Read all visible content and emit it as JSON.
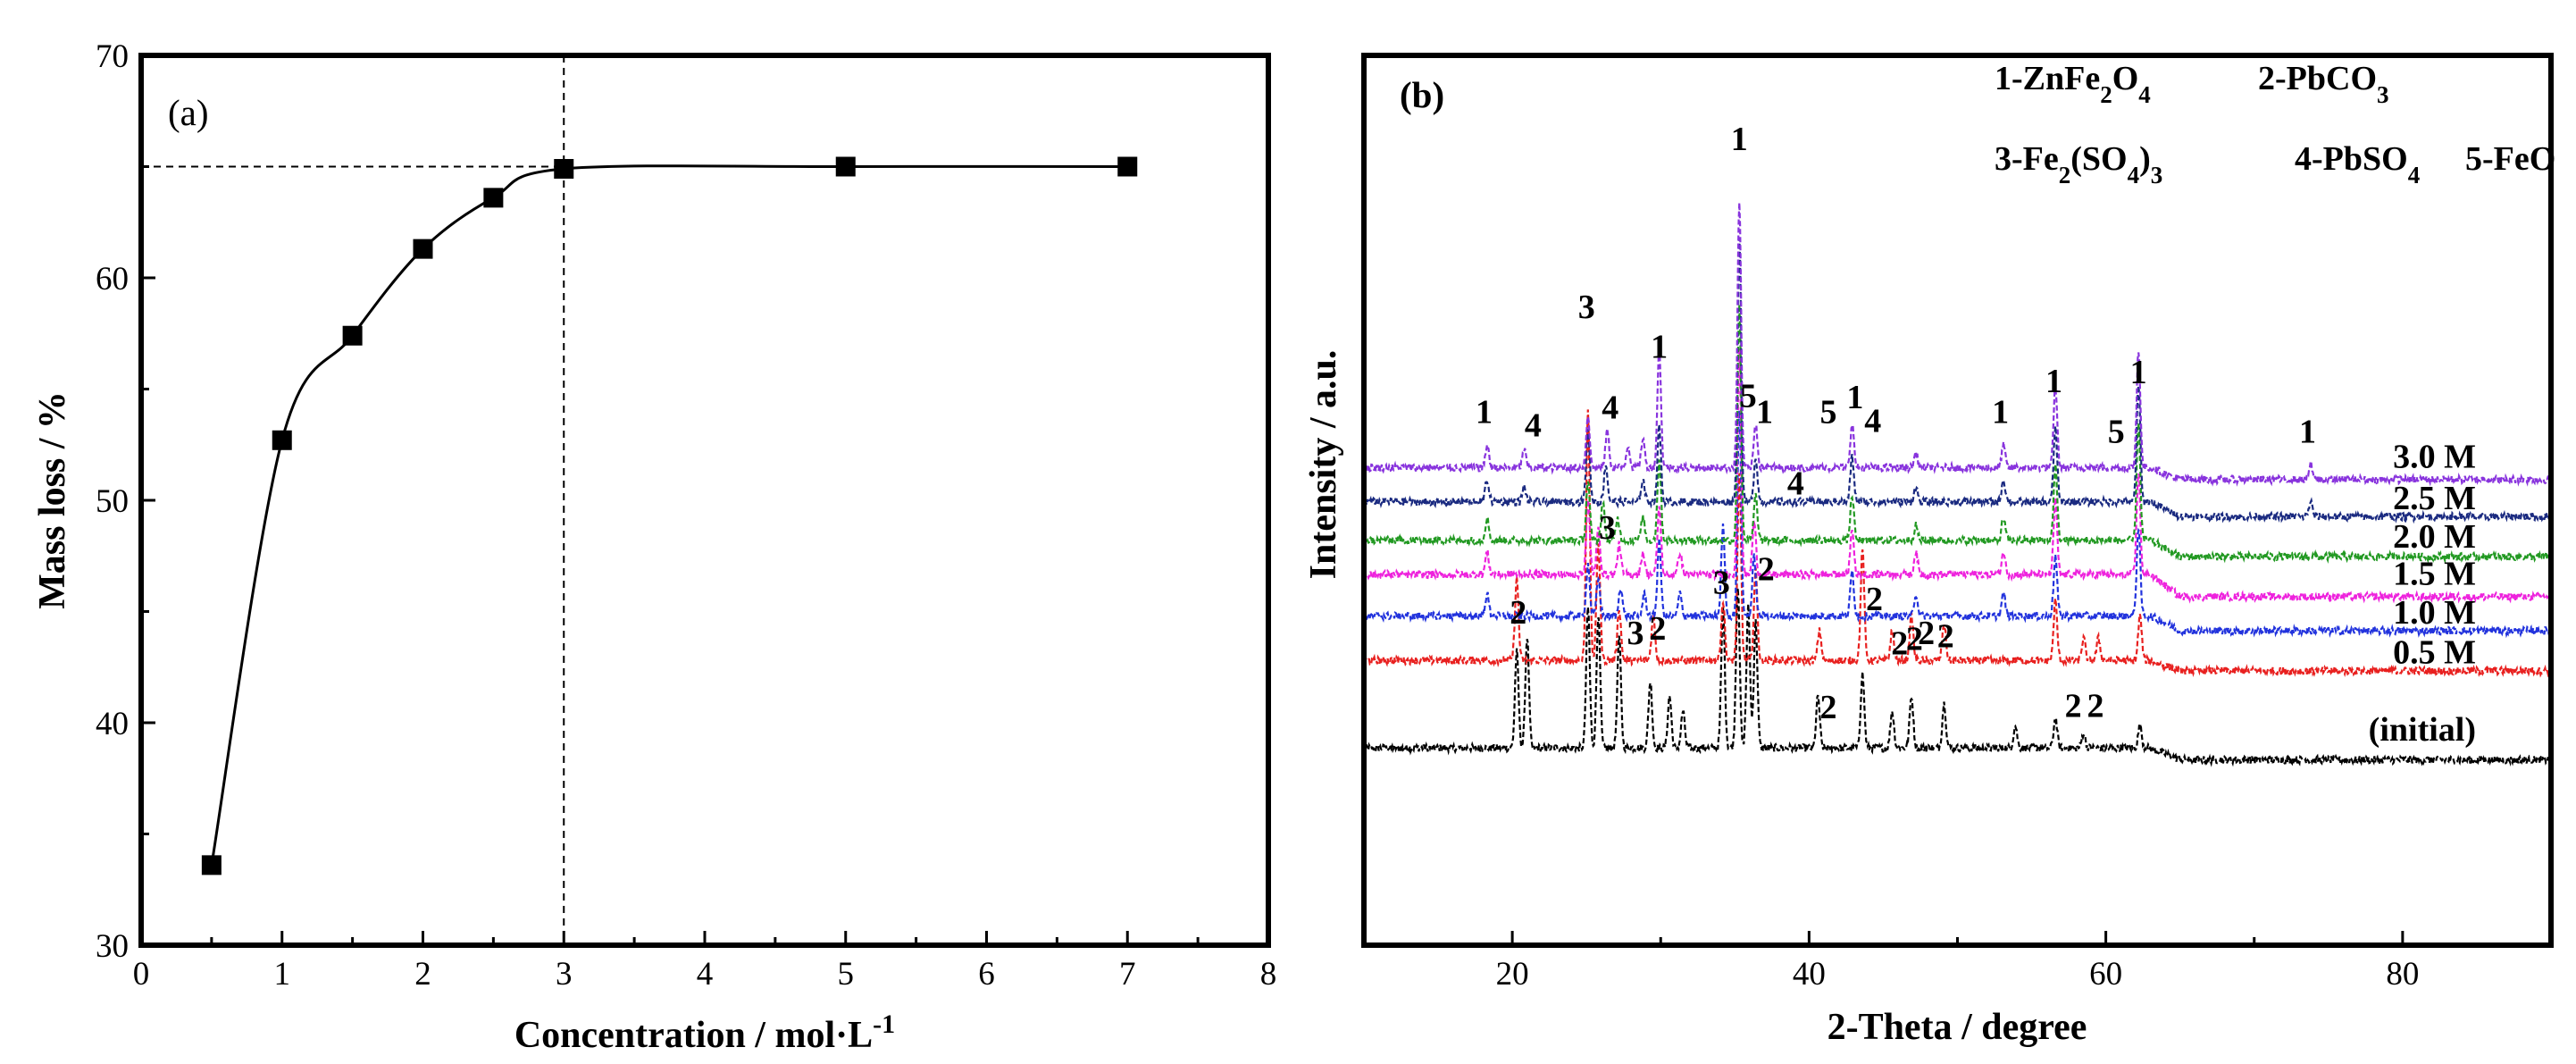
{
  "chart_data": [
    {
      "panel": "(a)",
      "type": "scatter",
      "xlabel": "Concentration / mol·L",
      "xlabel_sup": "-1",
      "ylabel": "Mass loss / %",
      "xlim": [
        0,
        8
      ],
      "ylim": [
        30,
        70
      ],
      "xticks": [
        "0",
        "1",
        "2",
        "3",
        "4",
        "5",
        "6",
        "7",
        "8"
      ],
      "yticks": [
        "30",
        "40",
        "50",
        "60",
        "70"
      ],
      "points": [
        {
          "x": 0.5,
          "y": 33.6
        },
        {
          "x": 1.0,
          "y": 52.7
        },
        {
          "x": 1.5,
          "y": 57.4
        },
        {
          "x": 2.0,
          "y": 61.3
        },
        {
          "x": 2.5,
          "y": 63.6
        },
        {
          "x": 3.0,
          "y": 64.9
        },
        {
          "x": 5.0,
          "y": 65.0
        },
        {
          "x": 7.0,
          "y": 65.0
        }
      ],
      "fit_curve": "smooth fit through points",
      "reference_lines": {
        "vertical_x": 3.0,
        "horizontal_y": 65.0,
        "style": "dashed"
      }
    },
    {
      "panel": "(b)",
      "type": "line",
      "xlabel": "2-Theta / degree",
      "ylabel": "Intensity / a.u.",
      "xlim": [
        10,
        90
      ],
      "xticks": [
        "20",
        "40",
        "60",
        "80"
      ],
      "legend": [
        {
          "no": "1",
          "formula": [
            [
              "ZnFe",
              ""
            ],
            [
              "2",
              "sub"
            ],
            [
              "O",
              ""
            ],
            [
              "4",
              "sub"
            ]
          ]
        },
        {
          "no": "2",
          "formula": [
            [
              "PbCO",
              ""
            ],
            [
              "3",
              "sub"
            ]
          ]
        },
        {
          "no": "3",
          "formula": [
            [
              "Fe",
              ""
            ],
            [
              "2",
              "sub"
            ],
            [
              "(SO",
              ""
            ],
            [
              "4",
              "sub"
            ],
            [
              ")",
              ""
            ],
            [
              "3",
              "sub"
            ]
          ]
        },
        {
          "no": "4",
          "formula": [
            [
              "PbSO",
              ""
            ],
            [
              "4",
              "sub"
            ]
          ]
        },
        {
          "no": "5",
          "formula": [
            [
              "FeO",
              ""
            ]
          ]
        }
      ],
      "series": [
        {
          "name": "(initial)",
          "color": "#000000",
          "baseline": 35.3,
          "endline": 34.5,
          "peaks": [
            [
              20.3,
              6.5
            ],
            [
              21.0,
              7.5
            ],
            [
              25.1,
              9.5
            ],
            [
              25.8,
              9.0
            ],
            [
              27.2,
              7.5
            ],
            [
              29.3,
              4.5
            ],
            [
              30.6,
              3.5
            ],
            [
              31.5,
              2.5
            ],
            [
              34.2,
              9.5
            ],
            [
              35.2,
              11.0
            ],
            [
              35.9,
              9.5
            ],
            [
              36.4,
              8.5
            ],
            [
              40.6,
              3.5
            ],
            [
              43.6,
              5.0
            ],
            [
              45.6,
              2.5
            ],
            [
              46.9,
              3.5
            ],
            [
              49.1,
              3.0
            ],
            [
              53.9,
              1.5
            ],
            [
              56.6,
              2.0
            ],
            [
              58.5,
              1.0
            ],
            [
              62.3,
              1.5
            ]
          ]
        },
        {
          "name": "0.5 M",
          "color": "#e8201f",
          "baseline": 41.2,
          "endline": 40.5,
          "peaks": [
            [
              20.3,
              5.5
            ],
            [
              25.1,
              17.0
            ],
            [
              25.8,
              8.0
            ],
            [
              27.2,
              3.5
            ],
            [
              29.5,
              3.0
            ],
            [
              34.2,
              4.0
            ],
            [
              35.3,
              12.5
            ],
            [
              36.4,
              6.0
            ],
            [
              40.7,
              2.0
            ],
            [
              43.6,
              7.5
            ],
            [
              45.6,
              2.0
            ],
            [
              46.9,
              3.0
            ],
            [
              49.1,
              2.5
            ],
            [
              56.6,
              4.0
            ],
            [
              58.5,
              1.5
            ],
            [
              59.5,
              1.5
            ],
            [
              62.3,
              3.0
            ]
          ]
        },
        {
          "name": "1.0 M",
          "color": "#2233dd",
          "baseline": 44.2,
          "endline": 43.2,
          "peaks": [
            [
              18.3,
              1.5
            ],
            [
              25.1,
              3.5
            ],
            [
              25.8,
              2.5
            ],
            [
              27.3,
              2.0
            ],
            [
              28.9,
              1.5
            ],
            [
              29.9,
              5.0
            ],
            [
              31.3,
              1.5
            ],
            [
              34.2,
              6.0
            ],
            [
              35.3,
              14.0
            ],
            [
              36.3,
              4.0
            ],
            [
              42.9,
              3.0
            ],
            [
              47.2,
              1.5
            ],
            [
              53.1,
              1.5
            ],
            [
              56.6,
              4.0
            ],
            [
              62.2,
              6.0
            ]
          ]
        },
        {
          "name": "1.5 M",
          "color": "#ee22dd",
          "baseline": 47.0,
          "endline": 45.5,
          "peaks": [
            [
              18.3,
              1.5
            ],
            [
              25.1,
              5.0
            ],
            [
              25.8,
              3.0
            ],
            [
              27.2,
              2.0
            ],
            [
              28.8,
              1.5
            ],
            [
              29.9,
              4.5
            ],
            [
              31.3,
              1.5
            ],
            [
              35.3,
              15.0
            ],
            [
              36.3,
              3.5
            ],
            [
              42.9,
              3.0
            ],
            [
              47.2,
              1.5
            ],
            [
              53.1,
              1.5
            ],
            [
              56.6,
              5.0
            ],
            [
              62.2,
              7.0
            ]
          ]
        },
        {
          "name": "2.0 M",
          "color": "#229922",
          "baseline": 49.3,
          "endline": 48.2,
          "peaks": [
            [
              18.3,
              1.5
            ],
            [
              25.1,
              4.0
            ],
            [
              26.1,
              2.5
            ],
            [
              27.1,
              1.5
            ],
            [
              28.8,
              1.5
            ],
            [
              29.9,
              5.5
            ],
            [
              35.3,
              16.0
            ],
            [
              36.4,
              3.0
            ],
            [
              42.9,
              3.0
            ],
            [
              47.2,
              1.0
            ],
            [
              53.1,
              1.5
            ],
            [
              56.6,
              5.0
            ],
            [
              62.2,
              8.0
            ]
          ]
        },
        {
          "name": "2.5 M",
          "color": "#1a2a80",
          "baseline": 51.9,
          "endline": 50.9,
          "peaks": [
            [
              18.3,
              1.5
            ],
            [
              20.8,
              1.0
            ],
            [
              25.1,
              5.0
            ],
            [
              26.3,
              2.5
            ],
            [
              28.8,
              1.5
            ],
            [
              29.9,
              5.0
            ],
            [
              35.3,
              18.0
            ],
            [
              36.4,
              3.0
            ],
            [
              42.9,
              3.0
            ],
            [
              47.2,
              1.0
            ],
            [
              53.1,
              1.5
            ],
            [
              56.6,
              5.0
            ],
            [
              62.2,
              8.0
            ],
            [
              73.8,
              1.0
            ]
          ]
        },
        {
          "name": "3.0 M",
          "color": "#8833dd",
          "baseline": 54.2,
          "endline": 53.4,
          "peaks": [
            [
              18.3,
              1.5
            ],
            [
              20.8,
              1.2
            ],
            [
              25.1,
              3.5
            ],
            [
              26.4,
              2.5
            ],
            [
              27.8,
              1.5
            ],
            [
              28.8,
              2.0
            ],
            [
              29.9,
              8.0
            ],
            [
              35.3,
              18.0
            ],
            [
              36.4,
              3.0
            ],
            [
              42.9,
              3.0
            ],
            [
              47.2,
              1.0
            ],
            [
              53.1,
              1.5
            ],
            [
              56.6,
              5.5
            ],
            [
              62.2,
              8.0
            ],
            [
              73.8,
              1.0
            ]
          ]
        }
      ],
      "series_labels": [
        {
          "text": "3.0 M",
          "y": 54.2
        },
        {
          "text": "2.5 M",
          "y": 51.4
        },
        {
          "text": "2.0 M",
          "y": 48.8
        },
        {
          "text": "1.5 M",
          "y": 46.3
        },
        {
          "text": "1.0 M",
          "y": 43.7
        },
        {
          "text": "0.5 M",
          "y": 41.0
        },
        {
          "text": "(initial)",
          "y": 35.8
        }
      ],
      "peak_labels": [
        {
          "text": "1",
          "x": 35.3,
          "y": 75.6
        },
        {
          "text": "3",
          "x": 25.0,
          "y": 64.3
        },
        {
          "text": "1",
          "x": 29.9,
          "y": 61.6
        },
        {
          "text": "1",
          "x": 62.2,
          "y": 59.9
        },
        {
          "text": "1",
          "x": 56.5,
          "y": 59.3
        },
        {
          "text": "5",
          "x": 35.9,
          "y": 58.3
        },
        {
          "text": "1",
          "x": 37.0,
          "y": 57.2
        },
        {
          "text": "1",
          "x": 43.1,
          "y": 58.2
        },
        {
          "text": "5",
          "x": 41.3,
          "y": 57.2
        },
        {
          "text": "4",
          "x": 26.6,
          "y": 57.5
        },
        {
          "text": "1",
          "x": 18.1,
          "y": 57.2
        },
        {
          "text": "4",
          "x": 21.4,
          "y": 56.3
        },
        {
          "text": "1",
          "x": 52.9,
          "y": 57.2
        },
        {
          "text": "4",
          "x": 44.3,
          "y": 56.6
        },
        {
          "text": "5",
          "x": 60.7,
          "y": 55.9
        },
        {
          "text": "1",
          "x": 73.6,
          "y": 55.9
        },
        {
          "text": "4",
          "x": 39.1,
          "y": 52.4
        },
        {
          "text": "3",
          "x": 26.4,
          "y": 49.4
        },
        {
          "text": "2",
          "x": 37.1,
          "y": 46.6
        },
        {
          "text": "3",
          "x": 34.1,
          "y": 45.7
        },
        {
          "text": "2",
          "x": 20.4,
          "y": 43.7
        },
        {
          "text": "2",
          "x": 44.4,
          "y": 44.6
        },
        {
          "text": "3",
          "x": 28.3,
          "y": 42.3
        },
        {
          "text": "2",
          "x": 29.8,
          "y": 42.6
        },
        {
          "text": "2",
          "x": 46.1,
          "y": 41.6
        },
        {
          "text": "2",
          "x": 47.1,
          "y": 41.9
        },
        {
          "text": "2",
          "x": 47.9,
          "y": 42.3
        },
        {
          "text": "2",
          "x": 49.2,
          "y": 42.1
        },
        {
          "text": "2",
          "x": 41.3,
          "y": 37.3
        },
        {
          "text": "2",
          "x": 57.8,
          "y": 37.4
        },
        {
          "text": "2",
          "x": 59.3,
          "y": 37.4
        }
      ]
    }
  ]
}
